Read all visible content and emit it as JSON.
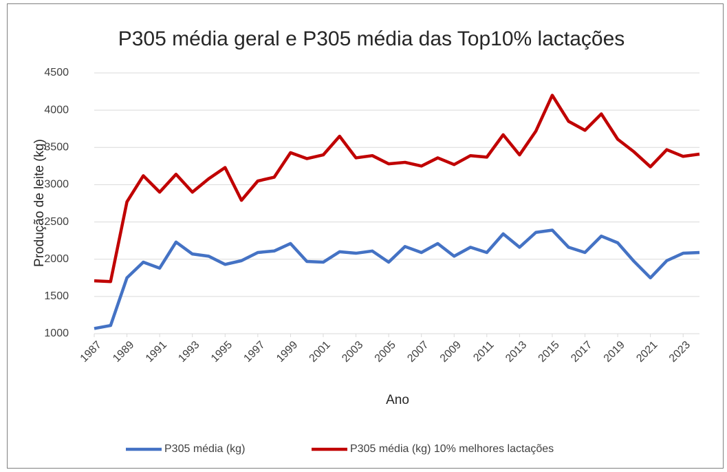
{
  "chart_data": {
    "type": "line",
    "title": "P305 média geral e P305 média das Top10% lactações",
    "x_label": "Ano",
    "y_label": "Produção de leite (kg)",
    "x": [
      1987,
      1988,
      1989,
      1990,
      1991,
      1992,
      1993,
      1994,
      1995,
      1996,
      1997,
      1998,
      1999,
      2000,
      2001,
      2002,
      2003,
      2004,
      2005,
      2006,
      2007,
      2008,
      2009,
      2010,
      2011,
      2012,
      2013,
      2014,
      2015,
      2016,
      2017,
      2018,
      2019,
      2020,
      2021,
      2022,
      2023,
      2024
    ],
    "xlim": [
      1987,
      2024
    ],
    "xticks": [
      1987,
      1989,
      1991,
      1993,
      1995,
      1997,
      1999,
      2001,
      2003,
      2005,
      2007,
      2009,
      2011,
      2013,
      2015,
      2017,
      2019,
      2021,
      2023
    ],
    "ylim": [
      1000,
      4500
    ],
    "yticks": [
      1000,
      1500,
      2000,
      2500,
      3000,
      3500,
      4000,
      4500
    ],
    "grid": true,
    "legend": "bottom",
    "series": [
      {
        "name": "P305 média (kg)",
        "color": "#4472c4",
        "values": [
          1070,
          1110,
          1750,
          1960,
          1880,
          2230,
          2070,
          2040,
          1930,
          1980,
          2090,
          2110,
          2210,
          1970,
          1960,
          2100,
          2080,
          2110,
          1960,
          2170,
          2090,
          2210,
          2040,
          2160,
          2090,
          2340,
          2160,
          2360,
          2390,
          2160,
          2090,
          2310,
          2220,
          1970,
          1750,
          1980,
          2080,
          2090
        ]
      },
      {
        "name": "P305 média (kg) 10% melhores lactações",
        "color": "#c00000",
        "values": [
          1710,
          1700,
          2770,
          3120,
          2900,
          3140,
          2900,
          3080,
          3230,
          2790,
          3050,
          3100,
          3430,
          3350,
          3400,
          3650,
          3360,
          3390,
          3280,
          3300,
          3250,
          3360,
          3270,
          3390,
          3370,
          3670,
          3400,
          3720,
          4200,
          3850,
          3730,
          3950,
          3610,
          3440,
          3240,
          3470,
          3380,
          3410
        ]
      }
    ]
  }
}
